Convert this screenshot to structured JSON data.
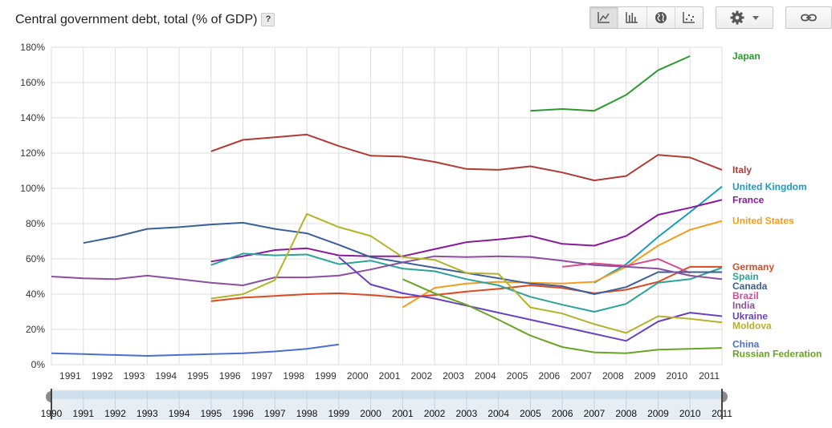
{
  "header": {
    "title": "Central government debt, total (% of GDP)",
    "help_label": "?"
  },
  "toolbar": {
    "chart_types": [
      {
        "name": "line-chart-icon",
        "active": true
      },
      {
        "name": "bar-chart-icon",
        "active": false
      },
      {
        "name": "map-icon",
        "active": false
      },
      {
        "name": "scatter-icon",
        "active": false
      }
    ],
    "settings_icon": "gear-icon",
    "link_icon": "link-icon"
  },
  "colors": {
    "grid": "#dddddd",
    "axis_text": "#333333",
    "range_fill": "#e6eef4",
    "range_handle": "#8a8a8a"
  },
  "chart_data": {
    "type": "line",
    "title": "Central government debt, total (% of GDP)",
    "xlabel": "",
    "ylabel": "",
    "xlim": [
      1990,
      2011
    ],
    "ylim": [
      0,
      180
    ],
    "y_ticks": [
      0,
      20,
      40,
      60,
      80,
      100,
      120,
      140,
      160,
      180
    ],
    "y_tick_labels": [
      "0%",
      "20%",
      "40%",
      "60%",
      "80%",
      "100%",
      "120%",
      "140%",
      "160%",
      "180%"
    ],
    "x_ticks": [
      1991,
      1992,
      1993,
      1994,
      1995,
      1996,
      1997,
      1998,
      1999,
      2000,
      2001,
      2002,
      2003,
      2004,
      2005,
      2006,
      2007,
      2008,
      2009,
      2010,
      2011
    ],
    "range_ticks": [
      1990,
      1991,
      1992,
      1993,
      1994,
      1995,
      1996,
      1997,
      1998,
      1999,
      2000,
      2001,
      2002,
      2003,
      2004,
      2005,
      2006,
      2007,
      2008,
      2009,
      2010,
      2011
    ],
    "grid": true,
    "legend": "right, labels at line ends",
    "series": [
      {
        "name": "Japan",
        "color": "#2b9a2f",
        "x": [
          2005,
          2006,
          2007,
          2008,
          2009,
          2010
        ],
        "y": [
          144,
          145,
          144,
          153,
          167,
          175
        ]
      },
      {
        "name": "Italy",
        "color": "#b03a34",
        "x": [
          1995,
          1996,
          1997,
          1998,
          1999,
          2000,
          2001,
          2002,
          2003,
          2004,
          2005,
          2006,
          2007,
          2008,
          2009,
          2010,
          2011
        ],
        "y": [
          121,
          127.5,
          129,
          130.5,
          124,
          118.5,
          118,
          115,
          111,
          110.5,
          112.5,
          109,
          104.5,
          107,
          119,
          117.5,
          110.5
        ]
      },
      {
        "name": "United Kingdom",
        "color": "#1a9bc2",
        "x": [
          2007,
          2008,
          2009,
          2010,
          2011
        ],
        "y": [
          46.5,
          57,
          72.5,
          86.5,
          101
        ]
      },
      {
        "name": "France",
        "color": "#8a1a9b",
        "x": [
          1995,
          1996,
          1997,
          1998,
          1999,
          2000,
          2001,
          2002,
          2003,
          2004,
          2005,
          2006,
          2007,
          2008,
          2009,
          2010,
          2011
        ],
        "y": [
          58.5,
          61.5,
          65,
          66,
          62,
          61.5,
          61.5,
          65.5,
          69.5,
          71,
          73,
          68.5,
          67.5,
          73,
          85,
          89,
          93.5
        ]
      },
      {
        "name": "United States",
        "color": "#f39c1f",
        "x": [
          2001,
          2002,
          2003,
          2004,
          2005,
          2006,
          2007,
          2008,
          2009,
          2010,
          2011
        ],
        "y": [
          32.5,
          43.5,
          46,
          47,
          46.5,
          46,
          47,
          55.5,
          67.5,
          76.5,
          81.5
        ]
      },
      {
        "name": "Germany",
        "color": "#dc4a23",
        "x": [
          1995,
          1996,
          1997,
          1998,
          1999,
          2000,
          2001,
          2002,
          2003,
          2004,
          2005,
          2006,
          2007,
          2008,
          2009,
          2010,
          2011
        ],
        "y": [
          36,
          38,
          39,
          40,
          40.5,
          39.5,
          38,
          39.5,
          41.5,
          43,
          45,
          43.5,
          40.5,
          42.5,
          47,
          55.5,
          55.5
        ]
      },
      {
        "name": "Spain",
        "color": "#2aa39a",
        "x": [
          1995,
          1996,
          1997,
          1998,
          1999,
          2000,
          2001,
          2002,
          2003,
          2004,
          2005,
          2006,
          2007,
          2008,
          2009,
          2010,
          2011
        ],
        "y": [
          56.5,
          63,
          62,
          62.5,
          57,
          59,
          54.5,
          53,
          48.5,
          45,
          38.5,
          34,
          30,
          34.5,
          46.5,
          48.5,
          55
        ]
      },
      {
        "name": "Brazil",
        "color": "#d64c8e",
        "x": [
          2006,
          2007,
          2008,
          2009,
          2010
        ],
        "y": [
          55.5,
          57.5,
          56,
          60,
          52
        ]
      },
      {
        "name": "Canada",
        "color": "#3a5f9a",
        "x": [
          1991,
          1992,
          1993,
          1994,
          1995,
          1996,
          1997,
          1998,
          1999,
          2000,
          2001,
          2002,
          2003,
          2004,
          2005,
          2006,
          2007,
          2008,
          2009,
          2010,
          2011
        ],
        "y": [
          69,
          72.5,
          77,
          78,
          79.5,
          80.5,
          77,
          74.5,
          68,
          61,
          58,
          55,
          52,
          49,
          46,
          44.5,
          40,
          44,
          52.5,
          52.5,
          52.5
        ]
      },
      {
        "name": "India",
        "color": "#8c4fa0",
        "x": [
          1990,
          1991,
          1992,
          1993,
          1994,
          1995,
          1996,
          1997,
          1998,
          1999,
          2000,
          2001,
          2002,
          2003,
          2004,
          2005,
          2006,
          2007,
          2008,
          2009,
          2010,
          2011
        ],
        "y": [
          50,
          49,
          48.5,
          50.5,
          48.5,
          46.5,
          45,
          49.5,
          49.5,
          50.5,
          54,
          58,
          61.5,
          61,
          61.5,
          61,
          59,
          56.5,
          55.5,
          54.5,
          50.5,
          48.5
        ]
      },
      {
        "name": "Ukraine",
        "color": "#6a40c2",
        "x": [
          1999,
          2000,
          2001,
          2002,
          2003,
          2004,
          2005,
          2006,
          2007,
          2008,
          2009,
          2010,
          2011
        ],
        "y": [
          61,
          45.5,
          40.5,
          37.5,
          33.5,
          29.5,
          25.5,
          21.5,
          17.5,
          13.5,
          24.5,
          29.5,
          27.5
        ]
      },
      {
        "name": "Moldova",
        "color": "#b5b22a",
        "x": [
          1995,
          1996,
          1997,
          1998,
          1999,
          2000,
          2001,
          2002,
          2003,
          2004,
          2005,
          2006,
          2007,
          2008,
          2009,
          2010,
          2011
        ],
        "y": [
          37.5,
          40,
          48,
          85.5,
          78,
          73,
          61,
          59.5,
          52,
          51.5,
          32.5,
          29,
          23,
          18,
          27.5,
          26,
          24
        ]
      },
      {
        "name": "China",
        "color": "#4a6fd0",
        "x": [
          1990,
          1991,
          1992,
          1993,
          1994,
          1995,
          1996,
          1997,
          1998,
          1999
        ],
        "y": [
          6.5,
          6,
          5.5,
          5,
          5.5,
          6,
          6.5,
          7.5,
          9,
          11.5
        ]
      },
      {
        "name": "Russian Federation",
        "color": "#6aa426",
        "x": [
          2001,
          2002,
          2003,
          2004,
          2005,
          2006,
          2007,
          2008,
          2009,
          2010,
          2011
        ],
        "y": [
          48.5,
          40.5,
          34,
          25.5,
          16.5,
          10,
          7,
          6.5,
          8.5,
          9,
          9.5
        ]
      }
    ]
  }
}
